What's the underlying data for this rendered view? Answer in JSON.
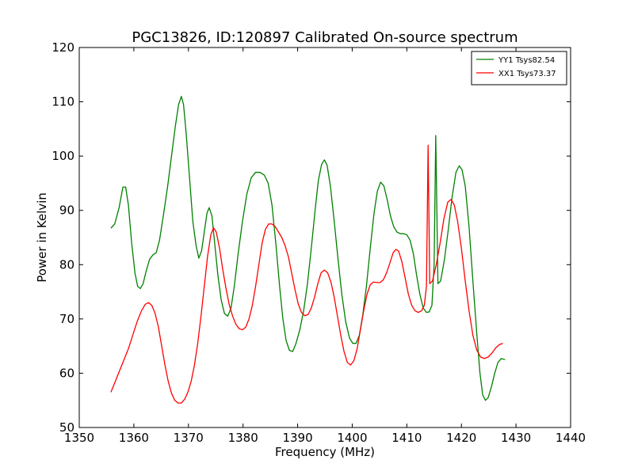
{
  "chart_data": {
    "type": "line",
    "title": "PGC13826, ID:120897 Calibrated On-source spectrum",
    "xlabel": "Frequency (MHz)",
    "ylabel": "Power in Kelvin",
    "xlim": [
      1350,
      1440
    ],
    "ylim": [
      50,
      120
    ],
    "xticks": [
      1350,
      1360,
      1370,
      1380,
      1390,
      1400,
      1410,
      1420,
      1430,
      1440
    ],
    "yticks": [
      50,
      60,
      70,
      80,
      90,
      100,
      110,
      120
    ],
    "grid": false,
    "legend_position": "top-right",
    "series": [
      {
        "name": "YY1 Tsys82.54",
        "color": "#008000",
        "points": [
          [
            1355.8,
            86.7
          ],
          [
            1356.5,
            87.5
          ],
          [
            1357.3,
            90.5
          ],
          [
            1358.0,
            94.3
          ],
          [
            1358.5,
            94.3
          ],
          [
            1359.0,
            91.0
          ],
          [
            1359.6,
            84.0
          ],
          [
            1360.2,
            78.5
          ],
          [
            1360.7,
            76.0
          ],
          [
            1361.2,
            75.6
          ],
          [
            1361.7,
            76.5
          ],
          [
            1362.3,
            79.0
          ],
          [
            1362.9,
            81.0
          ],
          [
            1363.5,
            81.8
          ],
          [
            1364.1,
            82.2
          ],
          [
            1364.7,
            84.5
          ],
          [
            1365.4,
            89.0
          ],
          [
            1366.2,
            94.5
          ],
          [
            1366.9,
            100.0
          ],
          [
            1367.6,
            105.5
          ],
          [
            1368.2,
            109.5
          ],
          [
            1368.7,
            111.0
          ],
          [
            1369.1,
            109.5
          ],
          [
            1369.6,
            104.0
          ],
          [
            1370.2,
            96.0
          ],
          [
            1370.8,
            88.0
          ],
          [
            1371.4,
            83.5
          ],
          [
            1371.9,
            81.2
          ],
          [
            1372.4,
            82.5
          ],
          [
            1372.9,
            86.0
          ],
          [
            1373.4,
            89.5
          ],
          [
            1373.8,
            90.5
          ],
          [
            1374.3,
            89.0
          ],
          [
            1374.8,
            84.0
          ],
          [
            1375.4,
            78.0
          ],
          [
            1376.0,
            73.5
          ],
          [
            1376.6,
            71.0
          ],
          [
            1377.2,
            70.5
          ],
          [
            1377.8,
            72.0
          ],
          [
            1378.4,
            76.0
          ],
          [
            1379.1,
            82.0
          ],
          [
            1379.9,
            88.0
          ],
          [
            1380.7,
            93.0
          ],
          [
            1381.5,
            96.0
          ],
          [
            1382.3,
            97.0
          ],
          [
            1383.1,
            97.0
          ],
          [
            1383.9,
            96.5
          ],
          [
            1384.6,
            95.0
          ],
          [
            1385.3,
            91.0
          ],
          [
            1386.0,
            84.0
          ],
          [
            1386.7,
            76.0
          ],
          [
            1387.3,
            70.0
          ],
          [
            1387.9,
            66.0
          ],
          [
            1388.5,
            64.2
          ],
          [
            1389.1,
            64.0
          ],
          [
            1389.7,
            65.5
          ],
          [
            1390.4,
            68.0
          ],
          [
            1391.1,
            71.5
          ],
          [
            1391.8,
            76.5
          ],
          [
            1392.5,
            83.0
          ],
          [
            1393.2,
            90.0
          ],
          [
            1393.8,
            95.5
          ],
          [
            1394.4,
            98.5
          ],
          [
            1394.9,
            99.3
          ],
          [
            1395.4,
            98.3
          ],
          [
            1396.0,
            94.5
          ],
          [
            1396.7,
            88.0
          ],
          [
            1397.4,
            81.0
          ],
          [
            1398.1,
            74.5
          ],
          [
            1398.8,
            69.5
          ],
          [
            1399.5,
            66.5
          ],
          [
            1400.1,
            65.5
          ],
          [
            1400.7,
            65.5
          ],
          [
            1401.3,
            67.0
          ],
          [
            1401.9,
            70.5
          ],
          [
            1402.6,
            76.0
          ],
          [
            1403.3,
            83.0
          ],
          [
            1404.0,
            89.5
          ],
          [
            1404.6,
            93.5
          ],
          [
            1405.2,
            95.2
          ],
          [
            1405.8,
            94.5
          ],
          [
            1406.4,
            92.0
          ],
          [
            1407.0,
            89.0
          ],
          [
            1407.6,
            87.0
          ],
          [
            1408.2,
            86.0
          ],
          [
            1408.8,
            85.7
          ],
          [
            1409.4,
            85.7
          ],
          [
            1410.0,
            85.5
          ],
          [
            1410.6,
            84.5
          ],
          [
            1411.2,
            82.0
          ],
          [
            1411.8,
            78.0
          ],
          [
            1412.4,
            74.5
          ],
          [
            1413.0,
            72.0
          ],
          [
            1413.6,
            71.2
          ],
          [
            1414.1,
            71.3
          ],
          [
            1414.6,
            72.5
          ],
          [
            1415.0,
            80.0
          ],
          [
            1415.3,
            103.8
          ],
          [
            1415.7,
            76.5
          ],
          [
            1416.2,
            77.0
          ],
          [
            1416.9,
            81.0
          ],
          [
            1417.6,
            86.5
          ],
          [
            1418.3,
            92.5
          ],
          [
            1419.0,
            97.0
          ],
          [
            1419.6,
            98.2
          ],
          [
            1420.1,
            97.5
          ],
          [
            1420.7,
            94.5
          ],
          [
            1421.4,
            87.0
          ],
          [
            1422.1,
            77.0
          ],
          [
            1422.8,
            67.5
          ],
          [
            1423.4,
            60.0
          ],
          [
            1423.9,
            56.0
          ],
          [
            1424.4,
            55.0
          ],
          [
            1424.9,
            55.5
          ],
          [
            1425.5,
            57.5
          ],
          [
            1426.1,
            60.0
          ],
          [
            1426.7,
            62.0
          ],
          [
            1427.3,
            62.7
          ],
          [
            1428.0,
            62.5
          ]
        ]
      },
      {
        "name": "XX1 Tsys73.37",
        "color": "#ff0000",
        "points": [
          [
            1355.8,
            56.5
          ],
          [
            1356.6,
            58.5
          ],
          [
            1357.4,
            60.5
          ],
          [
            1358.2,
            62.5
          ],
          [
            1359.0,
            64.5
          ],
          [
            1359.8,
            67.0
          ],
          [
            1360.6,
            69.5
          ],
          [
            1361.4,
            71.5
          ],
          [
            1362.1,
            72.7
          ],
          [
            1362.7,
            73.0
          ],
          [
            1363.3,
            72.5
          ],
          [
            1363.9,
            71.0
          ],
          [
            1364.5,
            68.5
          ],
          [
            1365.1,
            65.0
          ],
          [
            1365.7,
            61.5
          ],
          [
            1366.3,
            58.5
          ],
          [
            1366.9,
            56.3
          ],
          [
            1367.5,
            55.0
          ],
          [
            1368.1,
            54.5
          ],
          [
            1368.7,
            54.5
          ],
          [
            1369.3,
            55.2
          ],
          [
            1369.9,
            56.5
          ],
          [
            1370.5,
            58.5
          ],
          [
            1371.1,
            61.5
          ],
          [
            1371.7,
            65.5
          ],
          [
            1372.3,
            70.5
          ],
          [
            1372.9,
            76.0
          ],
          [
            1373.5,
            81.5
          ],
          [
            1374.1,
            85.5
          ],
          [
            1374.6,
            86.8
          ],
          [
            1375.1,
            86.0
          ],
          [
            1375.7,
            83.0
          ],
          [
            1376.3,
            79.0
          ],
          [
            1376.9,
            75.5
          ],
          [
            1377.5,
            72.5
          ],
          [
            1378.1,
            70.5
          ],
          [
            1378.7,
            69.0
          ],
          [
            1379.3,
            68.2
          ],
          [
            1379.9,
            68.0
          ],
          [
            1380.5,
            68.5
          ],
          [
            1381.1,
            70.0
          ],
          [
            1381.7,
            72.5
          ],
          [
            1382.3,
            76.0
          ],
          [
            1382.9,
            80.0
          ],
          [
            1383.5,
            84.0
          ],
          [
            1384.1,
            86.5
          ],
          [
            1384.7,
            87.5
          ],
          [
            1385.3,
            87.5
          ],
          [
            1385.9,
            87.0
          ],
          [
            1386.5,
            86.0
          ],
          [
            1387.1,
            85.0
          ],
          [
            1387.7,
            83.5
          ],
          [
            1388.3,
            81.5
          ],
          [
            1388.9,
            78.5
          ],
          [
            1389.5,
            75.5
          ],
          [
            1390.1,
            72.8
          ],
          [
            1390.7,
            71.2
          ],
          [
            1391.3,
            70.6
          ],
          [
            1391.9,
            70.8
          ],
          [
            1392.5,
            72.0
          ],
          [
            1393.1,
            74.0
          ],
          [
            1393.7,
            76.5
          ],
          [
            1394.3,
            78.5
          ],
          [
            1394.9,
            79.0
          ],
          [
            1395.5,
            78.5
          ],
          [
            1396.1,
            76.8
          ],
          [
            1396.7,
            74.0
          ],
          [
            1397.3,
            70.5
          ],
          [
            1397.9,
            67.0
          ],
          [
            1398.5,
            64.0
          ],
          [
            1399.1,
            62.0
          ],
          [
            1399.7,
            61.5
          ],
          [
            1400.3,
            62.3
          ],
          [
            1400.9,
            64.5
          ],
          [
            1401.5,
            68.0
          ],
          [
            1402.1,
            71.5
          ],
          [
            1402.7,
            74.5
          ],
          [
            1403.3,
            76.3
          ],
          [
            1403.9,
            76.8
          ],
          [
            1404.5,
            76.7
          ],
          [
            1405.1,
            76.7
          ],
          [
            1405.7,
            77.2
          ],
          [
            1406.3,
            78.5
          ],
          [
            1406.9,
            80.3
          ],
          [
            1407.5,
            82.2
          ],
          [
            1408.0,
            82.8
          ],
          [
            1408.5,
            82.5
          ],
          [
            1409.1,
            80.5
          ],
          [
            1409.7,
            77.5
          ],
          [
            1410.3,
            74.5
          ],
          [
            1410.9,
            72.5
          ],
          [
            1411.5,
            71.5
          ],
          [
            1412.1,
            71.2
          ],
          [
            1412.7,
            71.5
          ],
          [
            1413.2,
            72.5
          ],
          [
            1413.6,
            76.0
          ],
          [
            1413.9,
            102.0
          ],
          [
            1414.2,
            76.5
          ],
          [
            1414.7,
            77.0
          ],
          [
            1415.4,
            80.0
          ],
          [
            1416.1,
            84.0
          ],
          [
            1416.8,
            88.5
          ],
          [
            1417.5,
            91.5
          ],
          [
            1418.1,
            92.0
          ],
          [
            1418.7,
            91.0
          ],
          [
            1419.3,
            88.0
          ],
          [
            1420.0,
            83.0
          ],
          [
            1420.7,
            77.0
          ],
          [
            1421.4,
            71.5
          ],
          [
            1422.1,
            67.0
          ],
          [
            1422.8,
            64.3
          ],
          [
            1423.5,
            63.0
          ],
          [
            1424.2,
            62.7
          ],
          [
            1424.9,
            63.0
          ],
          [
            1425.6,
            63.7
          ],
          [
            1426.3,
            64.7
          ],
          [
            1427.0,
            65.3
          ],
          [
            1427.6,
            65.5
          ]
        ]
      }
    ]
  }
}
